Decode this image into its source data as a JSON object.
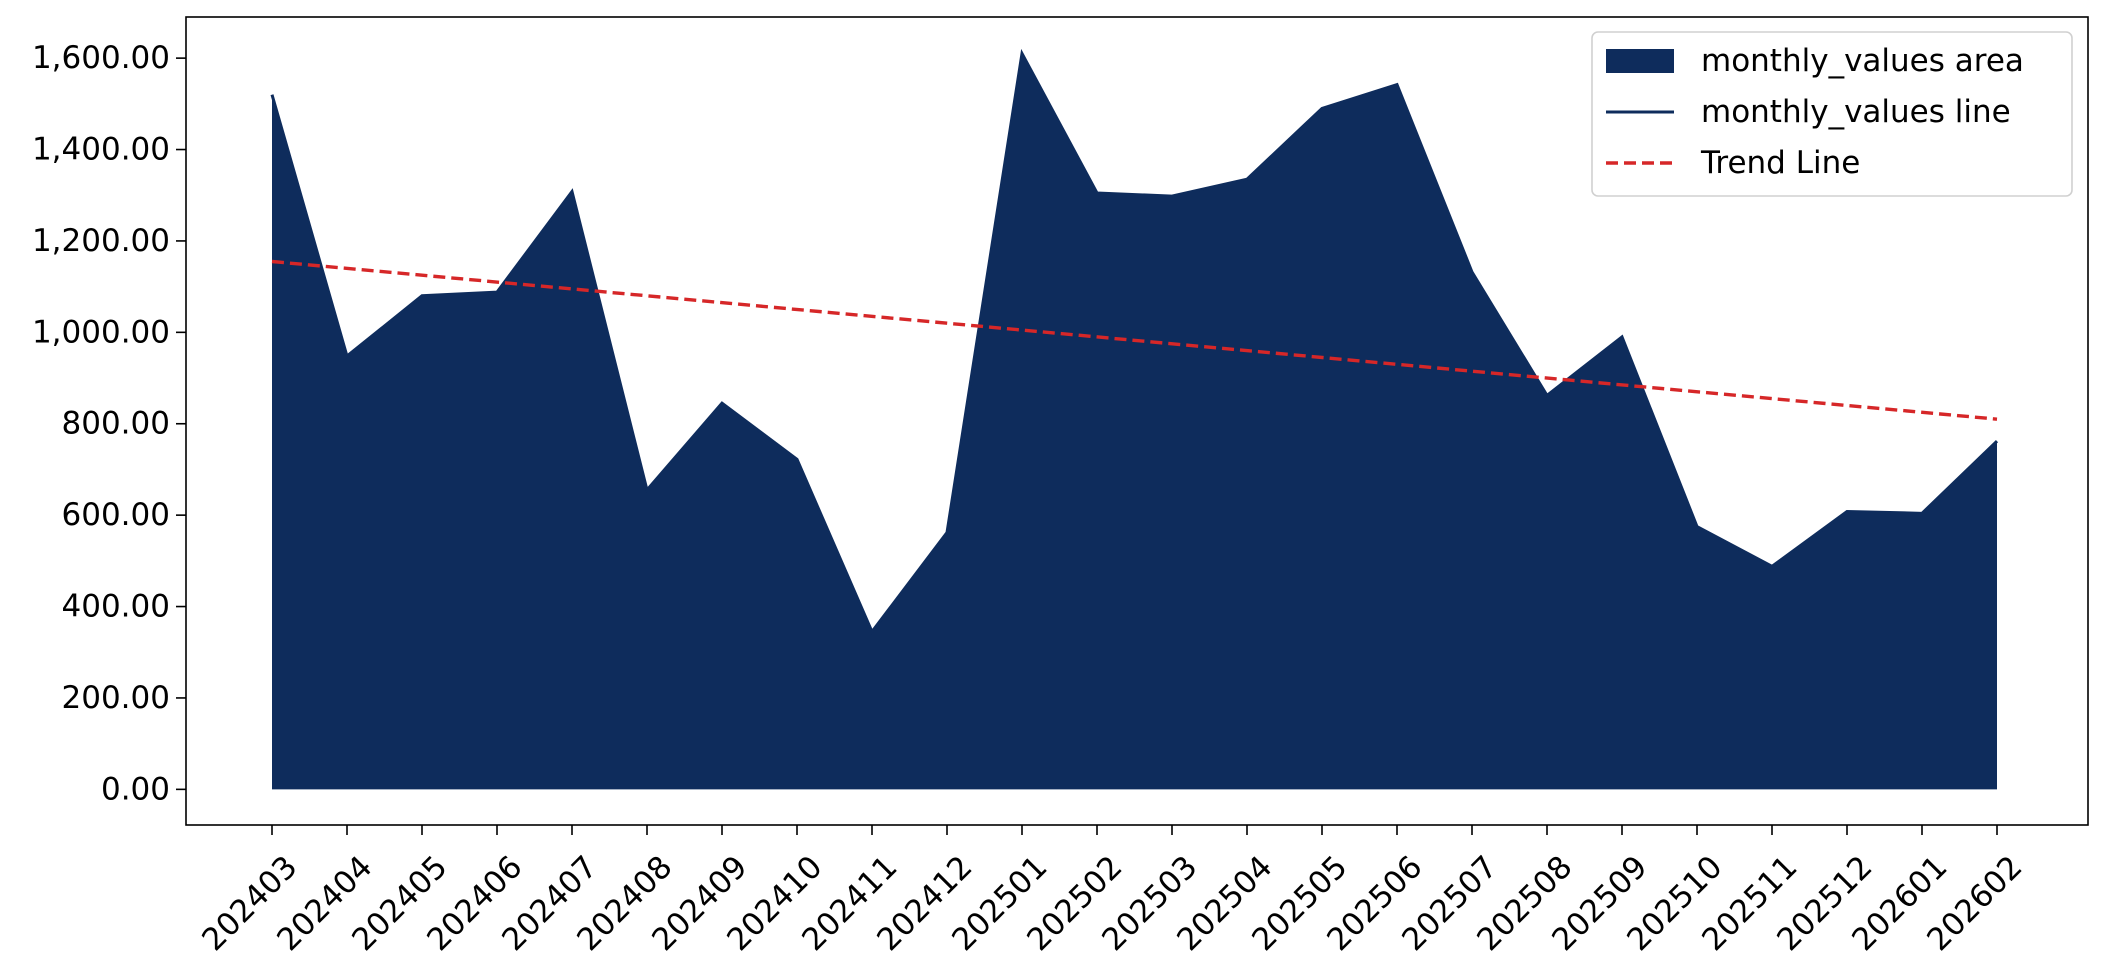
{
  "chart_data": {
    "type": "area",
    "categories": [
      "202403",
      "202404",
      "202405",
      "202406",
      "202407",
      "202408",
      "202409",
      "202410",
      "202411",
      "202412",
      "202501",
      "202502",
      "202503",
      "202504",
      "202505",
      "202506",
      "202507",
      "202508",
      "202509",
      "202510",
      "202511",
      "202512",
      "202601",
      "202602"
    ],
    "series": [
      {
        "name": "monthly_values area",
        "kind": "area",
        "values": [
          1520,
          948,
          1080,
          1088,
          1308,
          655,
          845,
          722,
          345,
          562,
          1610,
          1305,
          1298,
          1335,
          1490,
          1542,
          1132,
          862,
          990,
          575,
          488,
          608,
          604,
          762
        ]
      },
      {
        "name": "monthly_values line",
        "kind": "line",
        "values": [
          1520,
          948,
          1080,
          1088,
          1308,
          655,
          845,
          722,
          345,
          562,
          1610,
          1305,
          1298,
          1335,
          1490,
          1542,
          1132,
          862,
          990,
          575,
          488,
          608,
          604,
          762
        ]
      },
      {
        "name": "Trend Line",
        "kind": "trend",
        "start": 1155,
        "end": 810
      }
    ],
    "yticks": [
      "0.00",
      "200.00",
      "400.00",
      "600.00",
      "800.00",
      "1,000.00",
      "1,200.00",
      "1,400.00",
      "1,600.00"
    ],
    "ylim": [
      -78,
      1690
    ],
    "grid": false,
    "legend_position": "top-right",
    "colors": {
      "area": "#0e2c5c",
      "line": "#0e2c5c",
      "trend": "#d62728",
      "frame": "#000000"
    }
  }
}
